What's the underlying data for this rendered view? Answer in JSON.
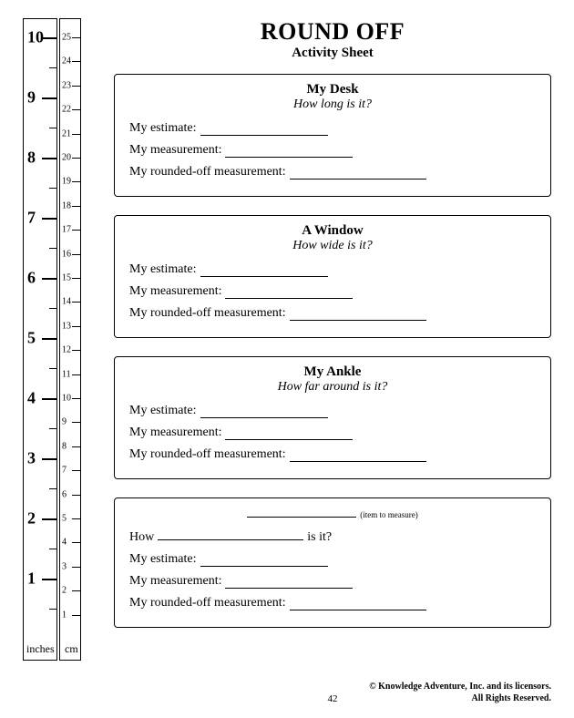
{
  "title": "ROUND OFF",
  "subtitle": "Activity Sheet",
  "ruler": {
    "inches_label": "inches",
    "cm_label": "cm",
    "inches_max": 10,
    "cm_max": 25,
    "inches_numbers": [
      "1",
      "2",
      "3",
      "4",
      "5",
      "6",
      "7",
      "8",
      "9",
      "10"
    ],
    "cm_numbers": [
      "1",
      "2",
      "3",
      "4",
      "5",
      "6",
      "7",
      "8",
      "9",
      "10",
      "11",
      "12",
      "13",
      "14",
      "15",
      "16",
      "17",
      "18",
      "19",
      "20",
      "21",
      "22",
      "23",
      "24",
      "25"
    ]
  },
  "sections": [
    {
      "title": "My Desk",
      "question": "How long is it?",
      "estimate_label": "My estimate:",
      "measurement_label": "My measurement:",
      "rounded_label": "My rounded-off measurement:"
    },
    {
      "title": "A Window",
      "question": "How wide is it?",
      "estimate_label": "My estimate:",
      "measurement_label": "My measurement:",
      "rounded_label": "My rounded-off measurement:"
    },
    {
      "title": "My Ankle",
      "question": "How far around is it?",
      "estimate_label": "My estimate:",
      "measurement_label": "My measurement:",
      "rounded_label": "My rounded-off measurement:"
    }
  ],
  "custom": {
    "item_hint": "(item to measure)",
    "how_prefix": "How",
    "how_suffix": "is it?",
    "estimate_label": "My estimate:",
    "measurement_label": "My measurement:",
    "rounded_label": "My rounded-off measurement:"
  },
  "footer": {
    "page_number": "42",
    "copyright_line1": "© Knowledge Adventure, Inc. and its licensors.",
    "copyright_line2": "All Rights Reserved."
  },
  "style": {
    "border_color": "#000000",
    "background": "#ffffff",
    "text_color": "#000000",
    "title_fontsize": 26,
    "body_fontsize": 14
  }
}
